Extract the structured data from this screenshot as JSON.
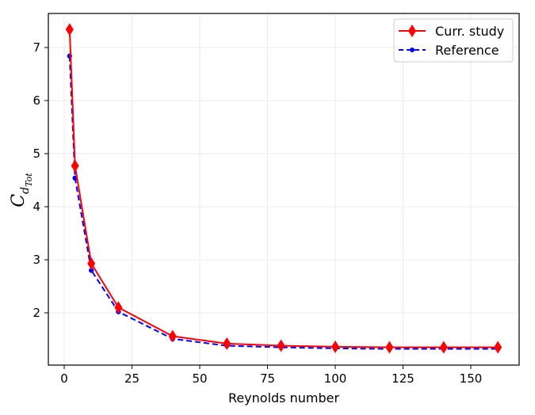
{
  "chart_data": {
    "type": "line",
    "title": "",
    "xlabel": "Reynolds number",
    "ylabel": "C_{d_{Tot}}",
    "xlim": [
      -5,
      168
    ],
    "ylim": [
      1.05,
      7.65
    ],
    "xticks": [
      0,
      25,
      50,
      75,
      100,
      125,
      150
    ],
    "yticks": [
      2,
      3,
      4,
      5,
      6,
      7
    ],
    "grid": true,
    "legend_position": "upper right",
    "series": [
      {
        "name": "Curr. study",
        "color": "#ff0000",
        "linestyle": "solid",
        "marker": "diamond",
        "x": [
          2,
          4,
          10,
          20,
          40,
          60,
          80,
          100,
          120,
          140,
          160
        ],
        "y": [
          7.34,
          4.77,
          2.93,
          2.1,
          1.56,
          1.42,
          1.38,
          1.36,
          1.35,
          1.35,
          1.35
        ]
      },
      {
        "name": "Reference",
        "color": "#0000ff",
        "linestyle": "dashed",
        "marker": "circle",
        "x": [
          2,
          4,
          10,
          20,
          40,
          60,
          80,
          100,
          120,
          140,
          160
        ],
        "y": [
          6.84,
          4.54,
          2.8,
          2.02,
          1.51,
          1.38,
          1.35,
          1.33,
          1.32,
          1.32,
          1.32
        ]
      }
    ]
  },
  "labels": {
    "xlabel": "Reynolds number",
    "legend": [
      "Curr. study",
      "Reference"
    ]
  }
}
